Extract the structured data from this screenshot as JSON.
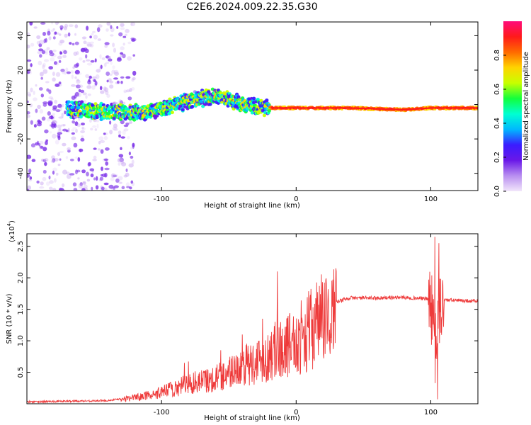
{
  "figure": {
    "title": "C2E6.2024.009.22.35.G30"
  },
  "chart_data": [
    {
      "type": "heatmap",
      "title": "C2E6.2024.009.22.35.G30",
      "xlabel": "Height of straight line (km)",
      "ylabel": "Frequency (Hz)",
      "xlim": [
        -200,
        135
      ],
      "ylim": [
        -50,
        48
      ],
      "x_ticks": [
        -100,
        0,
        100
      ],
      "y_ticks": [
        -40,
        -20,
        0,
        20,
        40
      ],
      "ridge": {
        "description_points": [
          {
            "x": -160,
            "y": -3
          },
          {
            "x": -140,
            "y": -4
          },
          {
            "x": -120,
            "y": -5
          },
          {
            "x": -100,
            "y": -3
          },
          {
            "x": -80,
            "y": 2
          },
          {
            "x": -60,
            "y": 5
          },
          {
            "x": -40,
            "y": 0
          },
          {
            "x": -20,
            "y": -2
          },
          {
            "x": 0,
            "y": -2
          },
          {
            "x": 40,
            "y": -2
          },
          {
            "x": 80,
            "y": -3
          },
          {
            "x": 100,
            "y": -2
          },
          {
            "x": 135,
            "y": -2
          }
        ]
      },
      "colorbar": {
        "label": "Normalized spectral amplitude",
        "range": [
          0,
          1
        ],
        "ticks": [
          "0.0",
          "0.2",
          "0.4",
          "0.6",
          "0.8"
        ],
        "tick_values": [
          0.0,
          0.2,
          0.4,
          0.6,
          0.8
        ],
        "stops": [
          "#f2e6fb",
          "#b98ff0",
          "#6a18e8",
          "#3a1cff",
          "#00b8ff",
          "#00ffd2",
          "#12ff3c",
          "#c8ff00",
          "#ffd400",
          "#ff6a00",
          "#ff1a1a",
          "#ff0c7a"
        ]
      }
    },
    {
      "type": "line",
      "xlabel": "Height of straight line (km)",
      "ylabel": "SNR (10 * v/v)",
      "multiplier_label": "(x10",
      "multiplier_exp": "4",
      "xlim": [
        -200,
        135
      ],
      "ylim": [
        0,
        27000
      ],
      "x_ticks": [
        -100,
        0,
        100
      ],
      "y_ticks": [
        5000,
        10000,
        15000,
        20000,
        25000
      ],
      "y_tick_labels": [
        "0.5",
        "1.0",
        "1.5",
        "2.0",
        "2.5"
      ],
      "series": [
        {
          "color": "#ee3a3a",
          "envelope_x": [
            -200,
            -140,
            -125,
            -110,
            -100,
            -90,
            -80,
            -70,
            -60,
            -50,
            -40,
            -30,
            -20,
            -15,
            -10,
            0,
            10,
            20,
            30,
            40,
            60,
            80,
            95,
            100,
            103,
            106,
            110,
            120,
            135
          ],
          "envelope_y": [
            300,
            500,
            900,
            1500,
            2000,
            2800,
            3500,
            4000,
            4500,
            5500,
            6500,
            7500,
            8500,
            9500,
            10000,
            11000,
            13000,
            15000,
            16200,
            16800,
            16800,
            16900,
            16700,
            16600,
            8000,
            14000,
            16500,
            16400,
            16300
          ],
          "spikes": [
            {
              "x": -83,
              "y": 6500
            },
            {
              "x": -80,
              "y": 6700
            },
            {
              "x": -56,
              "y": 8500
            },
            {
              "x": -40,
              "y": 11000
            },
            {
              "x": -25,
              "y": 13500
            },
            {
              "x": -14,
              "y": 21000
            },
            {
              "x": -5,
              "y": 14000
            },
            {
              "x": 103,
              "y": 26500
            },
            {
              "x": 105,
              "y": 700
            },
            {
              "x": 106,
              "y": 25500
            }
          ]
        }
      ]
    }
  ]
}
